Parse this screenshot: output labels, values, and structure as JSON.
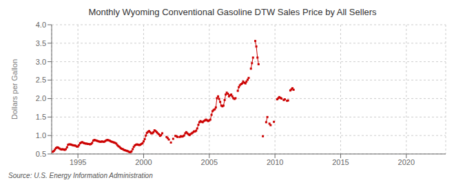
{
  "chart_data": {
    "type": "line",
    "title": "Monthly Wyoming Conventional Gasoline DTW Sales Price by All Sellers",
    "ylabel": "Dollars per Gallon",
    "annotations": [
      "Source: U.S. Energy Information Administration"
    ],
    "color": "#cc0000",
    "marker": "square",
    "line_style": "solid",
    "grid": true,
    "xlim": [
      1993.0,
      2023.0
    ],
    "ylim": [
      0.5,
      4.0
    ],
    "xticks": [
      1995,
      2000,
      2005,
      2010,
      2015,
      2020
    ],
    "yticks": [
      0.5,
      {
        "value": 1.0,
        "label": "1.0"
      },
      1.5,
      {
        "value": 2.0,
        "label": "2.0"
      },
      2.5,
      {
        "value": 3.0,
        "label": "3.0"
      },
      3.5,
      {
        "value": 4.0,
        "label": "4.0"
      }
    ],
    "x": [
      1993.08,
      1993.17,
      1993.25,
      1993.33,
      1993.42,
      1993.5,
      1993.58,
      1993.67,
      1993.75,
      1993.83,
      1993.92,
      1994.0,
      1994.08,
      1994.17,
      1994.25,
      1994.33,
      1994.42,
      1994.5,
      1994.58,
      1994.67,
      1994.75,
      1994.83,
      1994.92,
      1995.0,
      1995.08,
      1995.17,
      1995.25,
      1995.33,
      1995.42,
      1995.5,
      1995.58,
      1995.67,
      1995.75,
      1995.83,
      1995.92,
      1996.0,
      1996.08,
      1996.17,
      1996.25,
      1996.33,
      1996.42,
      1996.5,
      1996.58,
      1996.67,
      1996.75,
      1996.83,
      1996.92,
      1997.0,
      1997.08,
      1997.17,
      1997.25,
      1997.33,
      1997.42,
      1997.5,
      1997.58,
      1997.67,
      1997.75,
      1997.83,
      1997.92,
      1998.0,
      1998.08,
      1998.17,
      1998.25,
      1998.33,
      1998.42,
      1998.5,
      1998.58,
      1998.67,
      1998.75,
      1998.83,
      1998.92,
      1999.0,
      1999.08,
      1999.17,
      1999.25,
      1999.33,
      1999.42,
      1999.5,
      1999.58,
      1999.67,
      1999.75,
      1999.83,
      1999.92,
      2000.0,
      2000.08,
      2000.17,
      2000.25,
      2000.33,
      2000.42,
      2000.5,
      2000.58,
      2000.67,
      2000.75,
      2000.83,
      2000.92,
      2001.0,
      2001.08,
      2001.17,
      2001.25,
      2001.33,
      2001.42,
      null,
      2001.75,
      2001.83,
      2001.92,
      null,
      2002.08,
      null,
      2002.25,
      null,
      2002.42,
      2002.5,
      2002.58,
      null,
      2002.75,
      2002.83,
      2002.92,
      2003.0,
      2003.08,
      2003.17,
      2003.25,
      2003.33,
      2003.42,
      2003.5,
      2003.58,
      2003.67,
      2003.75,
      2003.83,
      2003.92,
      2004.0,
      2004.08,
      2004.17,
      2004.25,
      2004.33,
      2004.42,
      2004.5,
      2004.58,
      2004.67,
      2004.75,
      2004.83,
      2004.92,
      2005.0,
      2005.08,
      2005.17,
      2005.25,
      2005.33,
      2005.42,
      2005.5,
      2005.58,
      2005.67,
      2005.75,
      2005.83,
      2005.92,
      2006.0,
      2006.08,
      2006.17,
      2006.25,
      2006.33,
      2006.42,
      2006.5,
      2006.58,
      2006.67,
      2006.75,
      2006.83,
      2006.92,
      2007.0,
      null,
      2007.17,
      2007.25,
      2007.33,
      2007.42,
      2007.5,
      2007.58,
      2007.67,
      2007.75,
      2007.83,
      2007.92,
      2008.0,
      null,
      2008.17,
      2008.25,
      2008.33,
      null,
      2008.5,
      2008.58,
      2008.67,
      2008.75,
      null,
      2009.08,
      null,
      2009.33,
      2009.42,
      null,
      2009.58,
      2009.67,
      null,
      2009.92,
      null,
      2010.17,
      2010.25,
      2010.33,
      2010.42,
      2010.5,
      null,
      2010.67,
      2010.75,
      null,
      2010.92,
      2011.0,
      null,
      2011.17,
      2011.25,
      2011.33,
      2011.42
    ],
    "values": [
      0.56,
      0.58,
      0.62,
      0.66,
      0.68,
      0.67,
      0.65,
      0.63,
      0.62,
      0.63,
      0.62,
      0.61,
      0.63,
      0.68,
      0.75,
      0.76,
      0.76,
      0.75,
      0.74,
      0.73,
      0.73,
      0.72,
      0.7,
      0.7,
      0.74,
      0.79,
      0.81,
      0.82,
      0.8,
      0.79,
      0.78,
      0.78,
      0.77,
      0.77,
      0.76,
      0.77,
      0.8,
      0.86,
      0.88,
      0.87,
      0.86,
      0.85,
      0.84,
      0.83,
      0.83,
      0.84,
      0.83,
      0.83,
      0.85,
      0.87,
      0.88,
      0.87,
      0.86,
      0.84,
      0.83,
      0.82,
      0.81,
      0.8,
      0.78,
      0.74,
      0.71,
      0.69,
      0.66,
      0.64,
      0.63,
      0.61,
      0.6,
      0.59,
      0.58,
      0.57,
      0.55,
      0.55,
      0.57,
      0.63,
      0.69,
      0.73,
      0.75,
      0.76,
      0.75,
      0.74,
      0.75,
      0.77,
      0.79,
      0.84,
      0.9,
      1.0,
      1.07,
      1.1,
      1.12,
      1.09,
      1.06,
      1.06,
      1.09,
      1.14,
      1.12,
      1.09,
      1.06,
      1.03,
      0.99,
      1.01,
      1.06,
      null,
      0.96,
      0.93,
      0.89,
      null,
      0.81,
      null,
      0.91,
      null,
      0.99,
      0.98,
      0.96,
      null,
      0.96,
      0.98,
      0.97,
      0.98,
      1.0,
      1.06,
      1.09,
      1.06,
      1.03,
      1.01,
      1.04,
      1.06,
      1.08,
      1.11,
      1.11,
      1.13,
      1.19,
      1.29,
      1.36,
      1.39,
      1.37,
      1.36,
      1.39,
      1.41,
      1.43,
      1.41,
      1.39,
      1.41,
      1.43,
      1.56,
      1.66,
      1.69,
      1.71,
      1.76,
      2.01,
      2.06,
      1.99,
      1.91,
      1.81,
      1.79,
      1.81,
      1.96,
      2.11,
      2.16,
      2.13,
      2.06,
      2.09,
      2.11,
      2.06,
      2.01,
      1.99,
      2.01,
      null,
      2.21,
      2.31,
      2.36,
      2.39,
      2.41,
      2.46,
      2.43,
      2.41,
      2.46,
      2.51,
      2.56,
      null,
      2.81,
      2.96,
      3.11,
      null,
      3.56,
      3.41,
      3.11,
      2.93,
      null,
      0.98,
      null,
      1.36,
      1.5,
      null,
      1.32,
      1.28,
      null,
      1.37,
      null,
      1.98,
      2.01,
      2.04,
      2.02,
      2.0,
      null,
      1.96,
      1.98,
      null,
      1.94,
      1.95,
      null,
      2.22,
      2.25,
      2.28,
      2.24
    ]
  }
}
